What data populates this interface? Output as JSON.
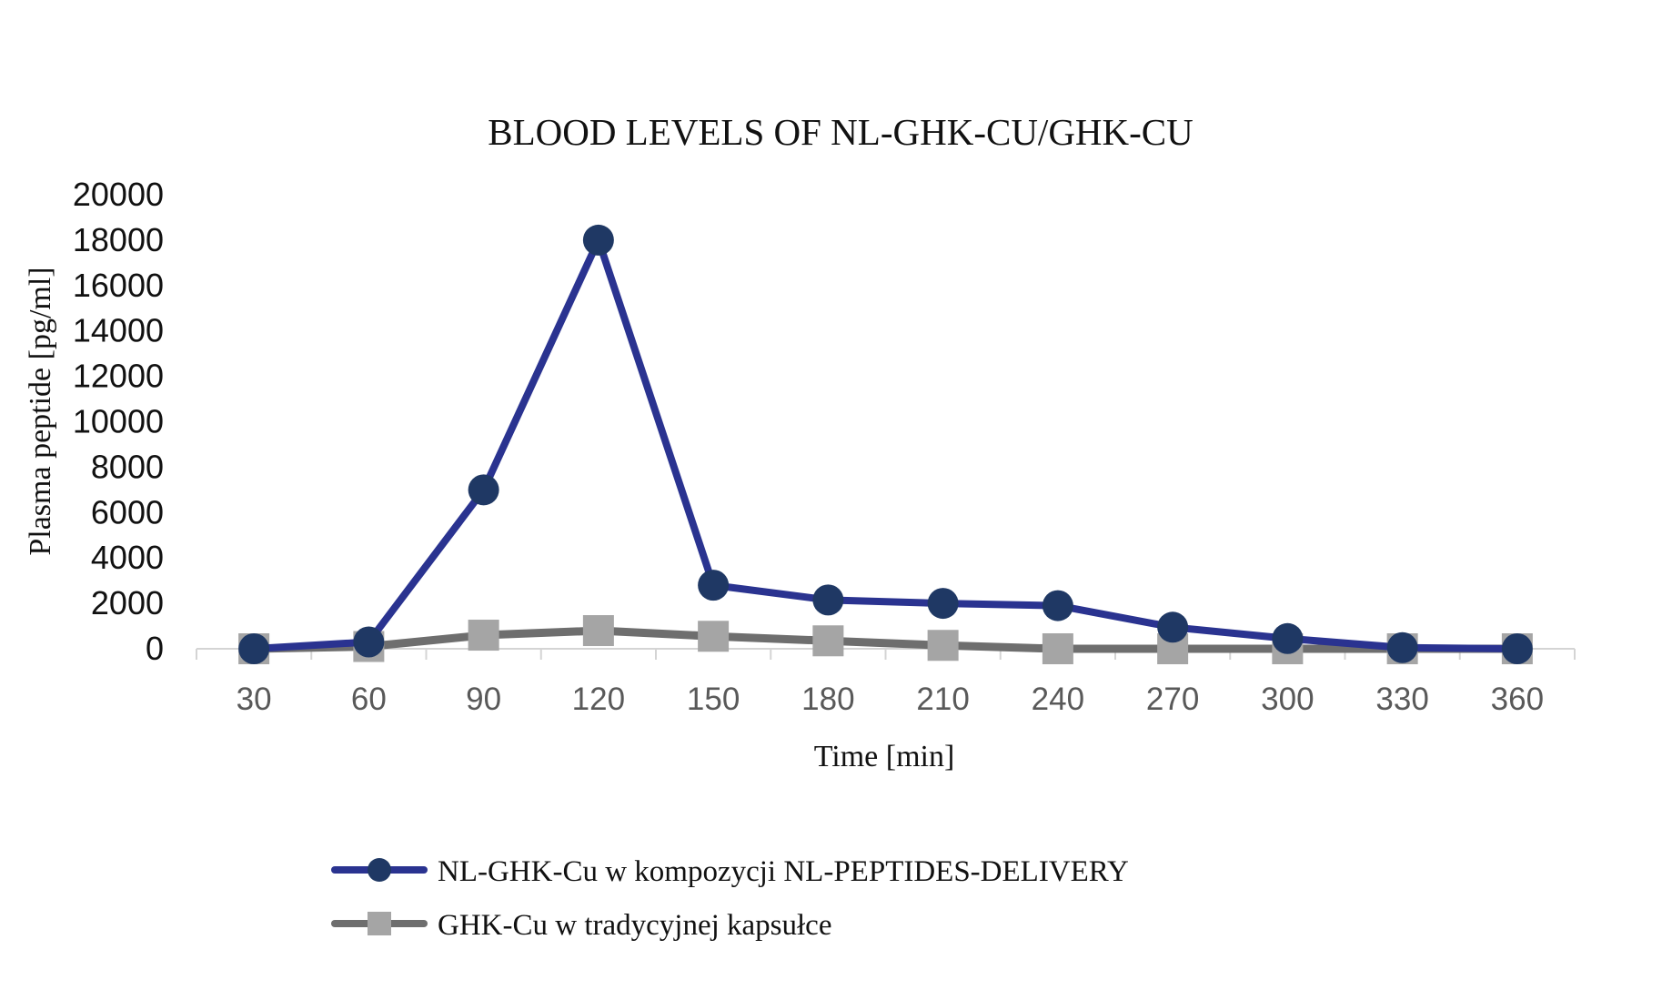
{
  "chart_data": {
    "type": "line",
    "title": "BLOOD LEVELS OF NL-GHK-CU/GHK-CU",
    "xlabel": "Time [min]",
    "ylabel": "Plasma peptide [pg/ml]",
    "categories": [
      "30",
      "60",
      "90",
      "120",
      "150",
      "180",
      "210",
      "240",
      "270",
      "300",
      "330",
      "360"
    ],
    "ylim": [
      0,
      20000
    ],
    "yticks": [
      "0",
      "2000",
      "4000",
      "6000",
      "8000",
      "10000",
      "12000",
      "14000",
      "16000",
      "18000",
      "20000"
    ],
    "grid": false,
    "legend_position": "bottom",
    "series": [
      {
        "name": "NL-GHK-Cu w kompozycji NL-PEPTIDES-DELIVERY",
        "values": [
          0,
          300,
          7000,
          18000,
          2800,
          2150,
          2000,
          1900,
          950,
          450,
          50,
          0
        ],
        "line_color": "#2a3390",
        "marker": "circle",
        "marker_color": "#1f3864"
      },
      {
        "name": "GHK-Cu w tradycyjnej kapsułce",
        "values": [
          0,
          100,
          600,
          800,
          550,
          350,
          150,
          0,
          0,
          0,
          0,
          0
        ],
        "line_color": "#6e6e6e",
        "marker": "square",
        "marker_color": "#a5a5a5"
      }
    ]
  }
}
